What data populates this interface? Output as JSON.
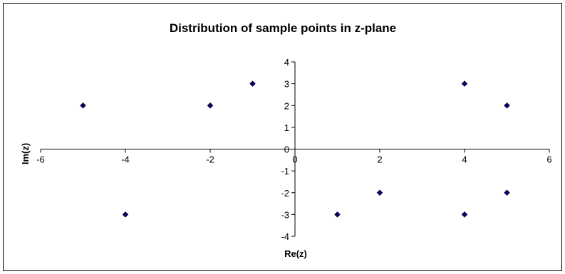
{
  "chart_data": {
    "type": "scatter",
    "title": "Distribution of sample points in z-plane",
    "xlabel": "Re(z)",
    "ylabel": "Im(z)",
    "xlim": [
      -6,
      6
    ],
    "ylim": [
      -4,
      4
    ],
    "x_ticks": [
      -6,
      -4,
      -2,
      0,
      2,
      4,
      6
    ],
    "y_ticks": [
      -4,
      -3,
      -2,
      -1,
      0,
      1,
      2,
      3,
      4
    ],
    "grid": false,
    "legend": "none",
    "marker": "diamond",
    "marker_color": "#000066",
    "points": [
      {
        "x": -5,
        "y": 2
      },
      {
        "x": -2,
        "y": 2
      },
      {
        "x": -1,
        "y": 3
      },
      {
        "x": 4,
        "y": 3
      },
      {
        "x": 5,
        "y": 2
      },
      {
        "x": -4,
        "y": -3
      },
      {
        "x": 1,
        "y": -3
      },
      {
        "x": 2,
        "y": -2
      },
      {
        "x": 4,
        "y": -3
      },
      {
        "x": 5,
        "y": -2
      }
    ]
  }
}
